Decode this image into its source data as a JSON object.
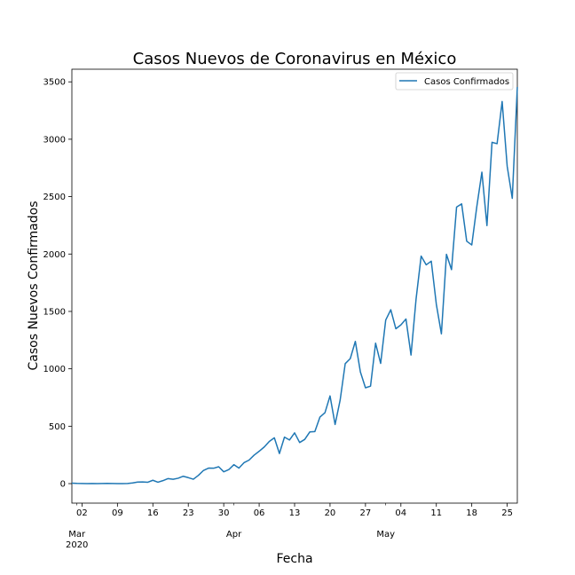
{
  "chart_data": {
    "type": "line",
    "title": "Casos Nuevos de Coronavirus en México",
    "xlabel": "Fecha",
    "ylabel": "Casos Nuevos Confirmados",
    "ylim": [
      -170,
      3610
    ],
    "xlim": [
      "2020-02-29",
      "2020-05-27"
    ],
    "grid": false,
    "legend_position": "top-right",
    "line_color": "#1f77b4",
    "y_ticks": [
      0,
      500,
      1000,
      1500,
      2000,
      2500,
      3000,
      3500
    ],
    "y_tick_labels": [
      "0",
      "500",
      "1000",
      "1500",
      "2000",
      "2500",
      "3000",
      "3500"
    ],
    "x_ticks": [
      {
        "date": "2020-03-02",
        "label": "02"
      },
      {
        "date": "2020-03-09",
        "label": "09"
      },
      {
        "date": "2020-03-16",
        "label": "16"
      },
      {
        "date": "2020-03-23",
        "label": "23"
      },
      {
        "date": "2020-03-30",
        "label": "30"
      },
      {
        "date": "2020-04-06",
        "label": "06"
      },
      {
        "date": "2020-04-13",
        "label": "13"
      },
      {
        "date": "2020-04-20",
        "label": "20"
      },
      {
        "date": "2020-04-27",
        "label": "27"
      },
      {
        "date": "2020-05-04",
        "label": "04"
      },
      {
        "date": "2020-05-11",
        "label": "11"
      },
      {
        "date": "2020-05-18",
        "label": "18"
      },
      {
        "date": "2020-05-25",
        "label": "25"
      }
    ],
    "month_labels": [
      {
        "date": "2020-03-01",
        "label": "Mar",
        "sub": "2020"
      },
      {
        "date": "2020-04-01",
        "label": "Apr",
        "sub": ""
      },
      {
        "date": "2020-05-01",
        "label": "May",
        "sub": ""
      }
    ],
    "series": [
      {
        "name": "Casos Confirmados",
        "x": [
          "2020-02-29",
          "2020-03-01",
          "2020-03-02",
          "2020-03-03",
          "2020-03-04",
          "2020-03-05",
          "2020-03-06",
          "2020-03-07",
          "2020-03-08",
          "2020-03-09",
          "2020-03-10",
          "2020-03-11",
          "2020-03-12",
          "2020-03-13",
          "2020-03-14",
          "2020-03-15",
          "2020-03-16",
          "2020-03-17",
          "2020-03-18",
          "2020-03-19",
          "2020-03-20",
          "2020-03-21",
          "2020-03-22",
          "2020-03-23",
          "2020-03-24",
          "2020-03-25",
          "2020-03-26",
          "2020-03-27",
          "2020-03-28",
          "2020-03-29",
          "2020-03-30",
          "2020-03-31",
          "2020-04-01",
          "2020-04-02",
          "2020-04-03",
          "2020-04-04",
          "2020-04-05",
          "2020-04-06",
          "2020-04-07",
          "2020-04-08",
          "2020-04-09",
          "2020-04-10",
          "2020-04-11",
          "2020-04-12",
          "2020-04-13",
          "2020-04-14",
          "2020-04-15",
          "2020-04-16",
          "2020-04-17",
          "2020-04-18",
          "2020-04-19",
          "2020-04-20",
          "2020-04-21",
          "2020-04-22",
          "2020-04-23",
          "2020-04-24",
          "2020-04-25",
          "2020-04-26",
          "2020-04-27",
          "2020-04-28",
          "2020-04-29",
          "2020-04-30",
          "2020-05-01",
          "2020-05-02",
          "2020-05-03",
          "2020-05-04",
          "2020-05-05",
          "2020-05-06",
          "2020-05-07",
          "2020-05-08",
          "2020-05-09",
          "2020-05-10",
          "2020-05-11",
          "2020-05-12",
          "2020-05-13",
          "2020-05-14",
          "2020-05-15",
          "2020-05-16",
          "2020-05-17",
          "2020-05-18",
          "2020-05-19",
          "2020-05-20",
          "2020-05-21",
          "2020-05-22",
          "2020-05-23",
          "2020-05-24",
          "2020-05-25",
          "2020-05-26",
          "2020-05-27"
        ],
        "y": [
          4,
          2,
          1,
          0,
          1,
          0,
          1,
          2,
          1,
          0,
          0,
          1,
          6,
          14,
          15,
          12,
          29,
          12,
          26,
          44,
          38,
          47,
          64,
          52,
          38,
          72,
          115,
          135,
          134,
          147,
          103,
          122,
          165,
          135,
          182,
          205,
          248,
          282,
          319,
          367,
          399,
          262,
          405,
          380,
          442,
          358,
          385,
          450,
          453,
          579,
          618,
          764,
          515,
          728,
          1045,
          1089,
          1239,
          972,
          835,
          849,
          1223,
          1047,
          1425,
          1515,
          1349,
          1383,
          1434,
          1120,
          1609,
          1982,
          1906,
          1938,
          1562,
          1305,
          1997,
          1864,
          2409,
          2437,
          2112,
          2079,
          2414,
          2713,
          2248,
          2973,
          2961,
          3329,
          2764,
          2485,
          3455
        ]
      }
    ]
  }
}
